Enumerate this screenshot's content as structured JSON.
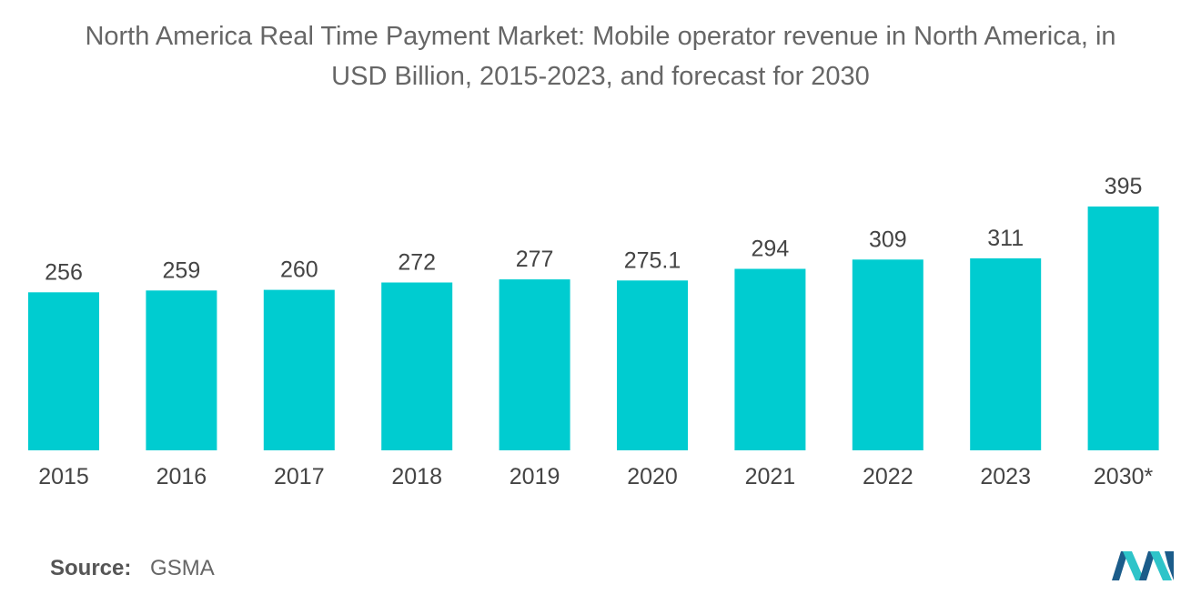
{
  "title_line1": "North America Real Time Payment Market: Mobile operator revenue in North America, in",
  "title_line2": "USD Billion, 2015-2023, and forecast for 2030",
  "chart_data": {
    "type": "bar",
    "title": "North America Real Time Payment Market: Mobile operator revenue in North America, in USD Billion, 2015-2023, and forecast for 2030",
    "categories": [
      "2015",
      "2016",
      "2017",
      "2018",
      "2019",
      "2020",
      "2021",
      "2022",
      "2023",
      "2030*"
    ],
    "values": [
      256,
      259,
      260,
      272,
      277,
      275.1,
      294,
      309,
      311,
      395
    ],
    "value_labels": [
      "256",
      "259",
      "260",
      "272",
      "277",
      "275.1",
      "294",
      "309",
      "311",
      "395"
    ],
    "xlabel": "",
    "ylabel": "",
    "ylim": [
      0,
      395
    ],
    "grid": false,
    "color": "#00CCD0"
  },
  "source": {
    "label": "Source:",
    "value": "GSMA"
  },
  "logo": {
    "icon": "mordor-intelligence-logo-icon",
    "colors": [
      "#1B5C8A",
      "#2EC4C9"
    ]
  }
}
